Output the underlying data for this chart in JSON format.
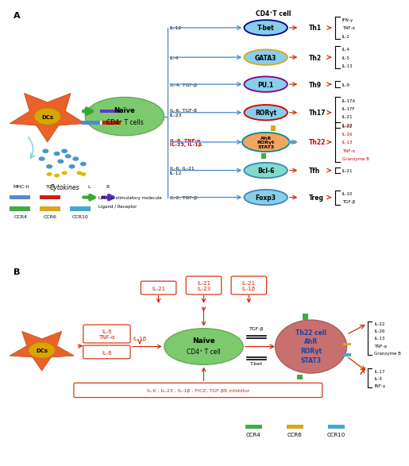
{
  "title_a": "A",
  "title_b": "B",
  "panel_a": {
    "rows": [
      {
        "cytokine": "IL-12",
        "tf": "T-bet",
        "tf_fill": "#87CEEB",
        "tf_edge": "#000080",
        "subset": "Th1",
        "products": "IFN-γ\nTNF-α\nIL-2",
        "products_color": "black",
        "cytokine_color": "black"
      },
      {
        "cytokine": "IL-4",
        "tf": "GATA3",
        "tf_fill": "#87CEEB",
        "tf_edge": "#DAA520",
        "subset": "Th2",
        "products": "IL-4\nIL-5\nIL-13",
        "products_color": "black",
        "cytokine_color": "black"
      },
      {
        "cytokine": "IL-4, TGF-β",
        "tf": "PU.1",
        "tf_fill": "#87CEEB",
        "tf_edge": "#800080",
        "subset": "Th9",
        "products": "IL-9",
        "products_color": "black",
        "cytokine_color": "black"
      },
      {
        "cytokine": "IL-6, TGF-β\nIL-23",
        "tf": "RORγt",
        "tf_fill": "#87CEEB",
        "tf_edge": "#CC0000",
        "subset": "Th17",
        "products": "IL-17A\nIL-17F\nIL-21\nIL-22",
        "products_color": "black",
        "cytokine_color": "black"
      },
      {
        "cytokine": "IL-6, TNF-α\nIL-23, IL-1β",
        "tf": "AhR\nRORγt\nSTAT3",
        "tf_fill": "#F4A460",
        "tf_edge": "#008B8B",
        "subset": "Th22",
        "products": "IL-22\nIL-26\nIL-13\nTNF-α\nGranzyme B",
        "products_color": "#CC0000",
        "cytokine_color": "#CC0000",
        "subset_color": "#CC0000",
        "has_ccr": true
      },
      {
        "cytokine": "IL-6, IL-21\nIL-12",
        "tf": "Bcl-6",
        "tf_fill": "#7FDBCC",
        "tf_edge": "#4682B4",
        "subset": "Tfh",
        "products": "IL-21",
        "products_color": "black",
        "cytokine_color": "black"
      },
      {
        "cytokine": "IL-2, TGF-β",
        "tf": "Foxp3",
        "tf_fill": "#87CEEB",
        "tf_edge": "#4682B4",
        "subset": "Treg",
        "products": "IL-10\nTGF-β",
        "products_color": "black",
        "cytokine_color": "black"
      }
    ]
  },
  "panel_b": {
    "cytokine_box1": "IL-21",
    "cytokine_box2": "IL-21\nIL-23",
    "cytokine_box3": "IL-21\nIL-1β",
    "bottom_box": "IL-6 , IL-23 , IL-1β , FICZ, TGF-βR inhibitor",
    "th22_products_up": "IL-22\nIL-26\nIL-13\nTNF-α\nGranzyme B",
    "th22_products_dn": "IL-17\nIL-4\nINF-γ"
  }
}
